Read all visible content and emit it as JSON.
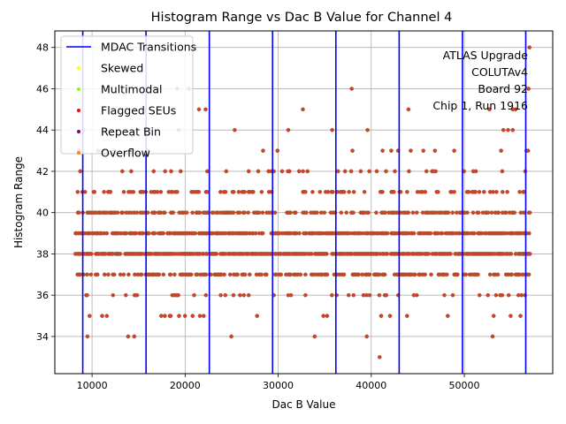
{
  "chart_data": {
    "type": "scatter",
    "title": "Histogram Range vs Dac B Value for Channel 4",
    "xlabel": "Dac B Value",
    "ylabel": "Histogram Range",
    "xlim": [
      6000,
      59500
    ],
    "ylim": [
      32.2,
      48.8
    ],
    "xticks": [
      10000,
      20000,
      30000,
      40000,
      50000
    ],
    "xtick_labels": [
      "10000",
      "20000",
      "30000",
      "40000",
      "50000"
    ],
    "yticks": [
      34,
      36,
      38,
      40,
      42,
      44,
      46,
      48
    ],
    "ytick_labels": [
      "34",
      "36",
      "38",
      "40",
      "42",
      "44",
      "46",
      "48"
    ],
    "grid": true,
    "legend_position": "top-left",
    "legend": [
      {
        "label": "MDAC Transitions",
        "kind": "line",
        "color": "#0000ff"
      },
      {
        "label": "Skewed",
        "kind": "dot",
        "color": "#ffff00"
      },
      {
        "label": "Multimodal",
        "kind": "dot",
        "color": "#7fff00"
      },
      {
        "label": "Flagged SEUs",
        "kind": "dot",
        "color": "#ff0000"
      },
      {
        "label": "Repeat Bin",
        "kind": "dot",
        "color": "#800080"
      },
      {
        "label": "Overflow",
        "kind": "dot",
        "color": "#ff8c00"
      }
    ],
    "annotation": [
      "ATLAS Upgrade",
      "COLUTAv4",
      "Board 92",
      "Chip 1, Run 1916"
    ],
    "mdac_transitions": [
      9000,
      15800,
      22600,
      29400,
      36200,
      43000,
      49800,
      56600
    ],
    "data_x_range": [
      8200,
      57200
    ],
    "band_density": {
      "38": 0.8,
      "39": 0.75,
      "40": 0.5,
      "37": 0.45,
      "41": 0.25,
      "36": 0.12,
      "42": 0.09,
      "43": 0.035,
      "35": 0.035,
      "34": 0.012,
      "44": 0.008,
      "45": 0.003,
      "46": 0.002
    },
    "extra_points": [
      {
        "x": 40900,
        "y": 33
      },
      {
        "x": 57000,
        "y": 48
      },
      {
        "x": 56900,
        "y": 46
      },
      {
        "x": 37900,
        "y": 46
      },
      {
        "x": 20400,
        "y": 46
      },
      {
        "x": 44000,
        "y": 45
      },
      {
        "x": 22200,
        "y": 45
      },
      {
        "x": 52700,
        "y": 45
      },
      {
        "x": 55200,
        "y": 45
      },
      {
        "x": 55500,
        "y": 45
      },
      {
        "x": 39600,
        "y": 44
      },
      {
        "x": 35800,
        "y": 44
      },
      {
        "x": 19300,
        "y": 44
      },
      {
        "x": 54200,
        "y": 44
      },
      {
        "x": 54700,
        "y": 44
      },
      {
        "x": 55200,
        "y": 44
      }
    ],
    "point_color": "#d1402a",
    "point_edge_color": "#8b5a2b"
  }
}
